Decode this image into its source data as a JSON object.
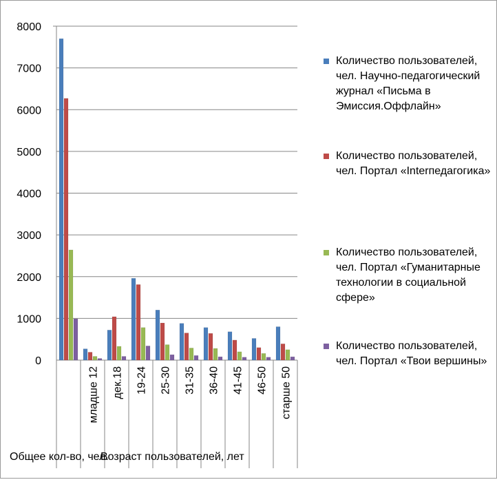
{
  "chart_data": {
    "type": "bar",
    "categories": [
      "Общее кол-во, чел.",
      "младше 12",
      "дек.18",
      "19-24",
      "25-30",
      "31-35",
      "36-40",
      "41-45",
      "46-50",
      "старше 50"
    ],
    "series": [
      {
        "name": "Количество пользователей, чел. Научно-педагогический журнал «Письма в Эмиссия.Оффлайн»",
        "color": "#4a7ebb",
        "values": [
          7700,
          270,
          720,
          1960,
          1200,
          880,
          780,
          680,
          520,
          800
        ]
      },
      {
        "name": "Количество пользователей, чел. Портал «Interпедагогика»",
        "color": "#be4b48",
        "values": [
          6270,
          190,
          1040,
          1810,
          890,
          650,
          640,
          480,
          300,
          390
        ]
      },
      {
        "name": "Количество пользователей, чел. Портал «Гуманитарные технологии в социальной сфере»",
        "color": "#98b954",
        "values": [
          2640,
          90,
          330,
          780,
          370,
          290,
          280,
          200,
          160,
          250
        ]
      },
      {
        "name": "Количество пользователей, чел. Портал «Твои вершины»",
        "color": "#7d60a0",
        "values": [
          990,
          40,
          90,
          340,
          130,
          110,
          80,
          70,
          70,
          80
        ]
      }
    ],
    "xlabel": "Возраст пользователей, лет",
    "ylim": [
      0,
      8000
    ],
    "yticks": [
      "0",
      "1000",
      "2000",
      "3000",
      "4000",
      "5000",
      "6000",
      "7000",
      "8000"
    ],
    "grid": true,
    "legend_position": "right"
  }
}
